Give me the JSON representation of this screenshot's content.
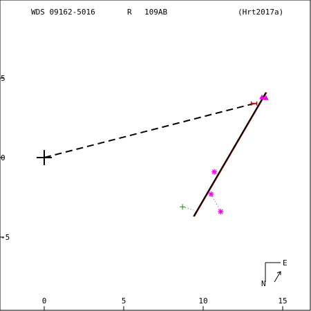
{
  "chart_data": {
    "type": "scatter",
    "header": {
      "wds_id": "WDS 09162-5016",
      "note_code": "R",
      "pair": "109AB",
      "reference": "(Hrt2017a)"
    },
    "x_ticks": [
      "0",
      "5",
      "10",
      "15"
    ],
    "y_ticks": [
      "5",
      "0",
      "-5"
    ],
    "xlim": [
      -2.7,
      16.6
    ],
    "ylim": [
      -9.3,
      9.8
    ],
    "grid": false,
    "primary_star": [
      0,
      0
    ],
    "orbit_line": [
      [
        9.4,
        -3.7
      ],
      [
        13.95,
        4.1
      ]
    ],
    "predicted_position": [
      13.2,
      3.4
    ],
    "dashed_connector": [
      [
        0,
        0
      ],
      [
        13.2,
        3.4
      ]
    ],
    "observations_magenta": [
      {
        "marker": "triangle",
        "x": 13.7,
        "y": 3.8
      },
      {
        "marker": "triangle",
        "x": 13.95,
        "y": 3.75
      },
      {
        "marker": "asterisk",
        "x": 10.7,
        "y": -0.9
      },
      {
        "marker": "asterisk",
        "x": 10.5,
        "y": -2.3
      },
      {
        "marker": "asterisk",
        "x": 11.1,
        "y": -3.4
      }
    ],
    "observations_green": [
      {
        "marker": "plus",
        "x": 8.7,
        "y": -3.1
      }
    ],
    "residual_links": [
      {
        "from": [
          10.5,
          -2.3
        ],
        "to": [
          11.1,
          -3.4
        ]
      },
      {
        "from": [
          8.7,
          -3.1
        ],
        "to": [
          9.4,
          -3.3
        ]
      }
    ],
    "compass": {
      "east_label": "E",
      "north_label": "N"
    },
    "colors": {
      "axes": "#000000",
      "orbit": "#000000",
      "residual": "#cc0000",
      "magenta": "#ee00ee",
      "green": "#009900"
    }
  }
}
